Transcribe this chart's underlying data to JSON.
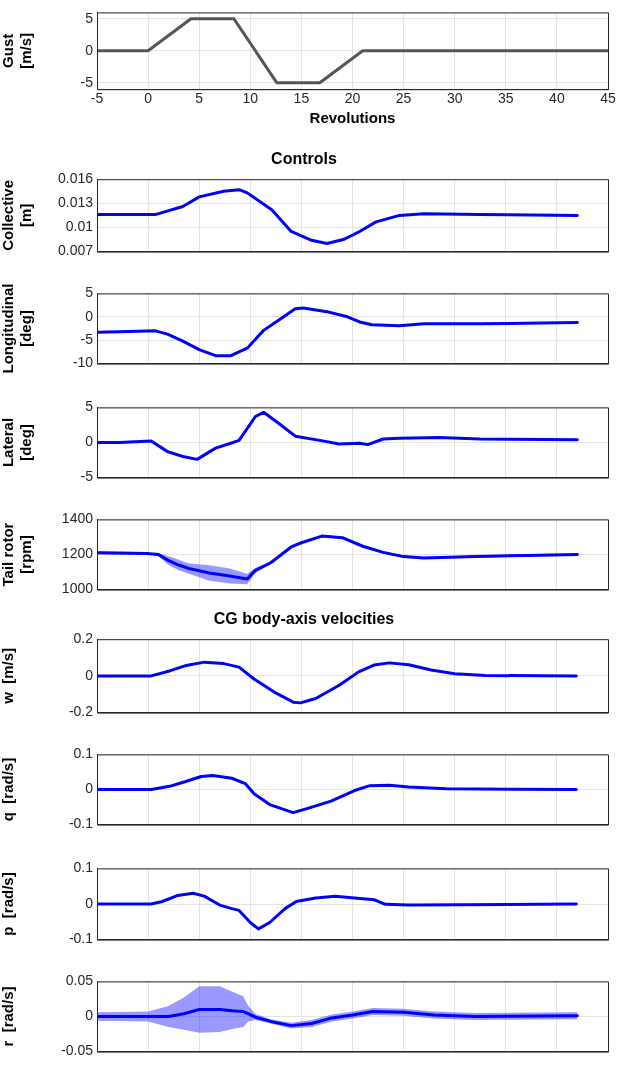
{
  "chart_data": [
    {
      "type": "line",
      "ylabel": "Gust\n[m/s]",
      "xlabel": "Revolutions",
      "x": [
        -5,
        0,
        4.2,
        8.4,
        12.6,
        16.8,
        21,
        45
      ],
      "series": [
        {
          "color": "#555555",
          "values": [
            0,
            0,
            5,
            5,
            -5,
            -5,
            0,
            0
          ]
        }
      ],
      "xlim": [
        -5,
        45
      ],
      "xticks": [
        -5,
        0,
        5,
        10,
        15,
        20,
        25,
        30,
        35,
        40,
        45
      ],
      "ylim": [
        -6,
        6
      ],
      "yticks": [
        -5,
        0,
        5
      ],
      "grid": true
    },
    {
      "type": "line",
      "title": "Controls",
      "ylabel": "Collective\n[m]",
      "x": [
        -5,
        0.7,
        3.4,
        5,
        7.4,
        8.9,
        9.7,
        12.1,
        14,
        16,
        17.5,
        19.1,
        20.7,
        22.3,
        24.6,
        27,
        32.5,
        42
      ],
      "series": [
        {
          "color": "#0000ff",
          "values": [
            0.0116,
            0.0116,
            0.0126,
            0.0138,
            0.0145,
            0.0147,
            0.0143,
            0.0122,
            0.0095,
            0.0084,
            0.008,
            0.0085,
            0.0095,
            0.0107,
            0.0115,
            0.0117,
            0.0116,
            0.0115
          ]
        }
      ],
      "xlim": [
        -5,
        45
      ],
      "xticks": [
        -5,
        0,
        5,
        10,
        15,
        20,
        25,
        30,
        35,
        40,
        45
      ],
      "ylim": [
        0.007,
        0.016
      ],
      "yticks": [
        0.007,
        0.01,
        0.013,
        0.016
      ],
      "grid": true,
      "tick_labels": "y"
    },
    {
      "type": "line",
      "ylabel": "Longitudinal\n[deg]",
      "x": [
        -5,
        -2.8,
        0.7,
        1.9,
        3.4,
        5,
        6.6,
        8.1,
        9.7,
        11.3,
        12.8,
        14.4,
        15.2,
        17.5,
        19.5,
        20.7,
        21.9,
        24.6,
        27,
        32.5,
        42
      ],
      "series": [
        {
          "color": "#0000ff",
          "values": [
            -3.3,
            -3.2,
            -3.0,
            -3.7,
            -5.2,
            -7.0,
            -8.3,
            -8.3,
            -6.7,
            -2.9,
            -0.7,
            1.7,
            1.9,
            1.1,
            0,
            -1.1,
            -1.7,
            -1.9,
            -1.5,
            -1.5,
            -1.2
          ]
        }
      ],
      "xlim": [
        -5,
        45
      ],
      "xticks": [
        -5,
        0,
        5,
        10,
        15,
        20,
        25,
        30,
        35,
        40,
        45
      ],
      "ylim": [
        -10,
        5
      ],
      "yticks": [
        -10,
        -5,
        0,
        5
      ],
      "grid": true,
      "tick_labels": "y"
    },
    {
      "type": "line",
      "ylabel": "Lateral\n[deg]",
      "x": [
        -5,
        -2.8,
        0.3,
        1.9,
        3.4,
        4.8,
        6.6,
        8.1,
        8.9,
        10.5,
        11.3,
        12.8,
        14.4,
        16.8,
        18.7,
        20.7,
        21.5,
        23,
        24.6,
        28.5,
        32.5,
        42
      ],
      "series": [
        {
          "color": "#0000ff",
          "values": [
            0,
            0,
            0.2,
            -1.3,
            -2.0,
            -2.4,
            -0.8,
            -0.1,
            0.3,
            3.7,
            4.3,
            2.7,
            0.9,
            0.3,
            -0.2,
            -0.1,
            -0.3,
            0.5,
            0.6,
            0.7,
            0.5,
            0.4
          ]
        }
      ],
      "xlim": [
        -5,
        45
      ],
      "xticks": [
        -5,
        0,
        5,
        10,
        15,
        20,
        25,
        30,
        35,
        40,
        45
      ],
      "ylim": [
        -5,
        5
      ],
      "yticks": [
        -5,
        0,
        5
      ],
      "grid": true,
      "tick_labels": "y"
    },
    {
      "type": "line",
      "ylabel": "Tail rotor\n[rpm]",
      "x": [
        -5,
        0,
        1,
        2,
        3,
        4,
        6,
        8,
        9.7,
        10.5,
        12,
        14,
        15,
        17,
        19,
        21,
        23,
        25,
        27,
        32,
        37,
        42
      ],
      "series": [
        {
          "color": "#0000ff",
          "values": [
            1210,
            1205,
            1200,
            1165,
            1140,
            1120,
            1095,
            1078,
            1060,
            1110,
            1153,
            1243,
            1267,
            1305,
            1296,
            1247,
            1212,
            1188,
            1180,
            1188,
            1195,
            1200
          ],
          "lower": [
            1202,
            1197,
            1192,
            1140,
            1110,
            1090,
            1051,
            1035,
            1031,
            1095,
            1147,
            1237,
            1261,
            1299,
            1290,
            1241,
            1206,
            1182,
            1174,
            1182,
            1189,
            1194
          ],
          "upper": [
            1218,
            1213,
            1208,
            1190,
            1170,
            1149,
            1139,
            1120,
            1090,
            1125,
            1159,
            1249,
            1273,
            1311,
            1302,
            1253,
            1218,
            1194,
            1186,
            1194,
            1201,
            1206
          ]
        }
      ],
      "xlim": [
        -5,
        45
      ],
      "xticks": [
        -5,
        0,
        5,
        10,
        15,
        20,
        25,
        30,
        35,
        40,
        45
      ],
      "ylim": [
        1000,
        1400
      ],
      "yticks": [
        1000,
        1200,
        1400
      ],
      "grid": true,
      "tick_labels": "y"
    },
    {
      "type": "line",
      "title": "CG body-axis velocities",
      "ylabel": "w  [m/s]",
      "x": [
        -5,
        0.3,
        2.1,
        3.6,
        5.5,
        7.4,
        8.9,
        10.4,
        12.3,
        14.2,
        14.9,
        16.4,
        18.7,
        20.6,
        22.1,
        23.6,
        25.5,
        27.7,
        30,
        33,
        41.9
      ],
      "series": [
        {
          "color": "#0000ff",
          "values": [
            0,
            0,
            0.027,
            0.055,
            0.075,
            0.067,
            0.048,
            -0.018,
            -0.087,
            -0.143,
            -0.147,
            -0.123,
            -0.051,
            0.022,
            0.059,
            0.071,
            0.061,
            0.032,
            0.012,
            0.002,
            0
          ]
        }
      ],
      "xlim": [
        -5,
        45
      ],
      "xticks": [
        -5,
        0,
        5,
        10,
        15,
        20,
        25,
        30,
        35,
        40,
        45
      ],
      "ylim": [
        -0.2,
        0.2
      ],
      "yticks": [
        -0.2,
        0,
        0.2
      ],
      "grid": true,
      "tick_labels": "y"
    },
    {
      "type": "line",
      "ylabel": "q  [rad/s]",
      "x": [
        -5,
        0.3,
        2.1,
        3.6,
        5.2,
        6.3,
        8.2,
        9.5,
        10.4,
        11.9,
        13.4,
        14.2,
        15.7,
        17.9,
        20.2,
        21.7,
        23.6,
        25.5,
        29.2,
        41.9
      ],
      "series": [
        {
          "color": "#0000ff",
          "values": [
            0,
            0,
            0.009,
            0.022,
            0.037,
            0.04,
            0.032,
            0.017,
            -0.013,
            -0.043,
            -0.058,
            -0.066,
            -0.053,
            -0.033,
            -0.003,
            0.011,
            0.012,
            0.007,
            0.002,
            0
          ]
        }
      ],
      "xlim": [
        -5,
        45
      ],
      "xticks": [
        -5,
        0,
        5,
        10,
        15,
        20,
        25,
        30,
        35,
        40,
        45
      ],
      "ylim": [
        -0.1,
        0.1
      ],
      "yticks": [
        -0.1,
        0,
        0.1
      ],
      "grid": true,
      "tick_labels": "y"
    },
    {
      "type": "line",
      "ylabel": "p  [rad/s]",
      "x": [
        -5,
        0.3,
        1.4,
        2.9,
        4.4,
        5.5,
        7,
        8.2,
        8.9,
        10,
        10.8,
        11.9,
        13.4,
        14.5,
        16.4,
        18.3,
        20.2,
        22.1,
        23.2,
        25.5,
        41.9
      ],
      "series": [
        {
          "color": "#0000ff",
          "values": [
            0,
            0,
            0.007,
            0.024,
            0.03,
            0.022,
            -0.003,
            -0.013,
            -0.018,
            -0.052,
            -0.07,
            -0.052,
            -0.013,
            0.007,
            0.017,
            0.022,
            0.017,
            0.012,
            -0.001,
            -0.003,
            0
          ]
        }
      ],
      "xlim": [
        -5,
        45
      ],
      "xticks": [
        -5,
        0,
        5,
        10,
        15,
        20,
        25,
        30,
        35,
        40,
        45
      ],
      "ylim": [
        -0.1,
        0.1
      ],
      "yticks": [
        -0.1,
        0,
        0.1
      ],
      "grid": true,
      "tick_labels": "y"
    },
    {
      "type": "line",
      "ylabel": "r  [rad/s]",
      "x": [
        -5,
        0,
        2,
        3.5,
        5,
        7,
        8.5,
        9.3,
        9.8,
        10.5,
        12,
        14,
        16,
        18,
        20,
        22,
        25,
        28,
        32,
        42
      ],
      "series": [
        {
          "color": "#0000ff",
          "values": [
            0,
            0,
            0,
            0.004,
            0.01,
            0.01,
            0.008,
            0.007,
            0.004,
            -0.001,
            -0.007,
            -0.013,
            -0.01,
            -0.002,
            0.002,
            0.007,
            0.006,
            0.002,
            0,
            0.001
          ],
          "lower": [
            -0.006,
            -0.007,
            -0.015,
            -0.019,
            -0.023,
            -0.022,
            -0.017,
            -0.015,
            -0.007,
            -0.005,
            -0.01,
            -0.017,
            -0.015,
            -0.007,
            -0.003,
            0.002,
            0.001,
            -0.003,
            -0.005,
            -0.004
          ],
          "upper": [
            0.006,
            0.007,
            0.015,
            0.027,
            0.043,
            0.043,
            0.034,
            0.029,
            0.015,
            0.004,
            -0.004,
            -0.009,
            -0.005,
            0.003,
            0.007,
            0.012,
            0.011,
            0.007,
            0.005,
            0.006
          ]
        }
      ],
      "xlim": [
        -5,
        45
      ],
      "xticks": [
        -5,
        0,
        5,
        10,
        15,
        20,
        25,
        30,
        35,
        40,
        45
      ],
      "ylim": [
        -0.05,
        0.05
      ],
      "yticks": [
        -0.05,
        0,
        0.05
      ],
      "grid": true,
      "tick_labels": "y"
    }
  ]
}
